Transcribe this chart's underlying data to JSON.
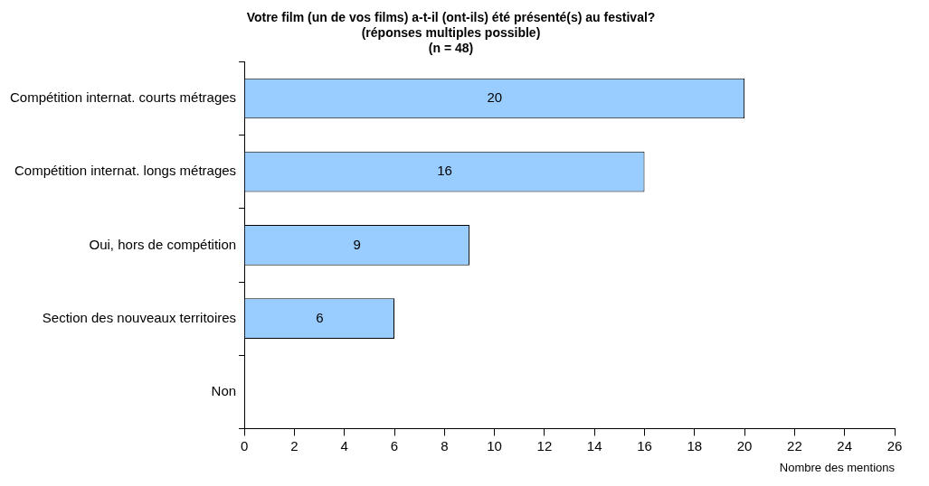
{
  "chart_data": {
    "type": "bar",
    "orientation": "horizontal",
    "title": "Votre film (un de vos films) a-t-il (ont-ils) été présenté(s) au festival?",
    "subtitle": "(réponses multiples possible)\n(n = 48)",
    "xlabel": "Nombre des mentions",
    "categories": [
      "Compétition internat. courts métrages",
      "Compétition internat. longs métrages",
      "Oui, hors de compétition",
      "Section des nouveaux territoires",
      "Non"
    ],
    "values": [
      20,
      16,
      9,
      6,
      0
    ],
    "value_labels": [
      "20",
      "16",
      "9",
      "6",
      null
    ],
    "color": "#99ccff",
    "xlim": [
      0,
      26
    ],
    "xticks": [
      0,
      2,
      4,
      6,
      8,
      10,
      12,
      14,
      16,
      18,
      20,
      22,
      24,
      26
    ],
    "legend": false
  }
}
